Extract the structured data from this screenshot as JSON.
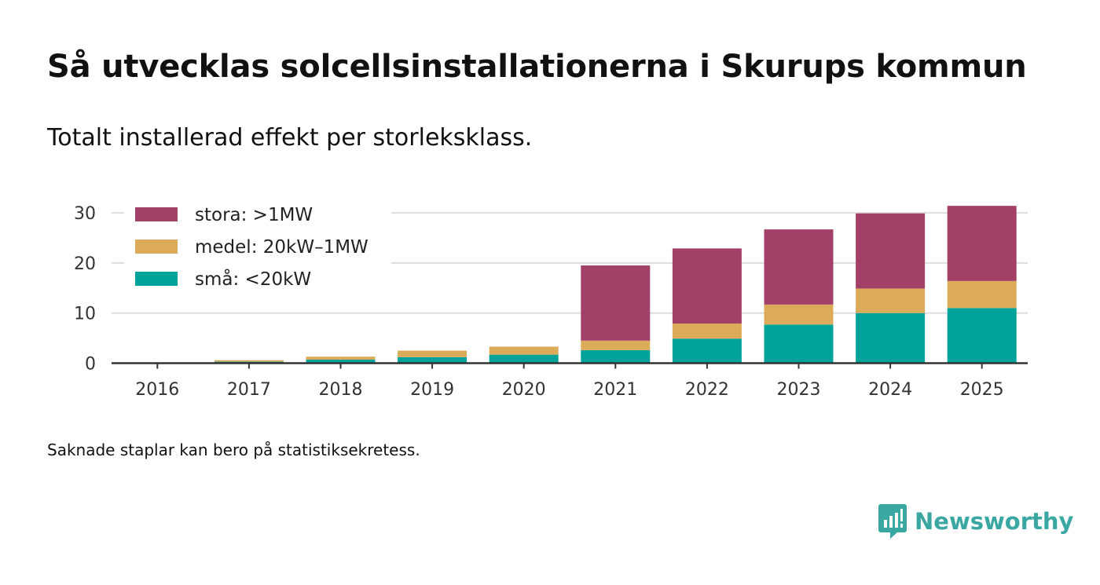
{
  "title": "Så utvecklas solcellsinstallationerna i Skurups kommun",
  "subtitle": "Totalt installerad effekt per storleksklass.",
  "footnote": "Saknade staplar kan bero på statistiksekretess.",
  "brand": {
    "name": "Newsworthy",
    "logo_icon": "newsworthy-bar-chart-bubble-icon",
    "color": "#3aa7a3"
  },
  "colors": {
    "stora": "#a34068",
    "medel": "#dcab59",
    "sma": "#00a39a",
    "grid": "#dddddd",
    "axis": "#333333",
    "text": "#111111"
  },
  "chart_data": {
    "type": "bar",
    "stacked": true,
    "title": "Så utvecklas solcellsinstallationerna i Skurups kommun",
    "subtitle": "Totalt installerad effekt per storleksklass.",
    "xlabel": "",
    "ylabel": "",
    "ylim": [
      0,
      33
    ],
    "yticks": [
      0,
      10,
      20,
      30
    ],
    "grid": true,
    "legend_position": "top-left",
    "categories": [
      "2016",
      "2017",
      "2018",
      "2019",
      "2020",
      "2021",
      "2022",
      "2023",
      "2024",
      "2025"
    ],
    "series": [
      {
        "name": "små: <20kW",
        "key": "sma",
        "values": [
          0.1,
          0.3,
          0.7,
          1.2,
          1.7,
          2.6,
          4.9,
          7.7,
          10.0,
          11.0
        ]
      },
      {
        "name": "medel: 20kW–1MW",
        "key": "medel",
        "values": [
          0.0,
          0.3,
          0.6,
          1.3,
          1.6,
          1.9,
          3.0,
          4.0,
          4.9,
          5.4
        ]
      },
      {
        "name": "stora: >1MW",
        "key": "stora",
        "values": [
          0.0,
          0.0,
          0.0,
          0.0,
          0.0,
          15.0,
          15.0,
          15.0,
          15.0,
          15.0
        ]
      }
    ],
    "legend_order": [
      "stora",
      "medel",
      "sma"
    ]
  }
}
